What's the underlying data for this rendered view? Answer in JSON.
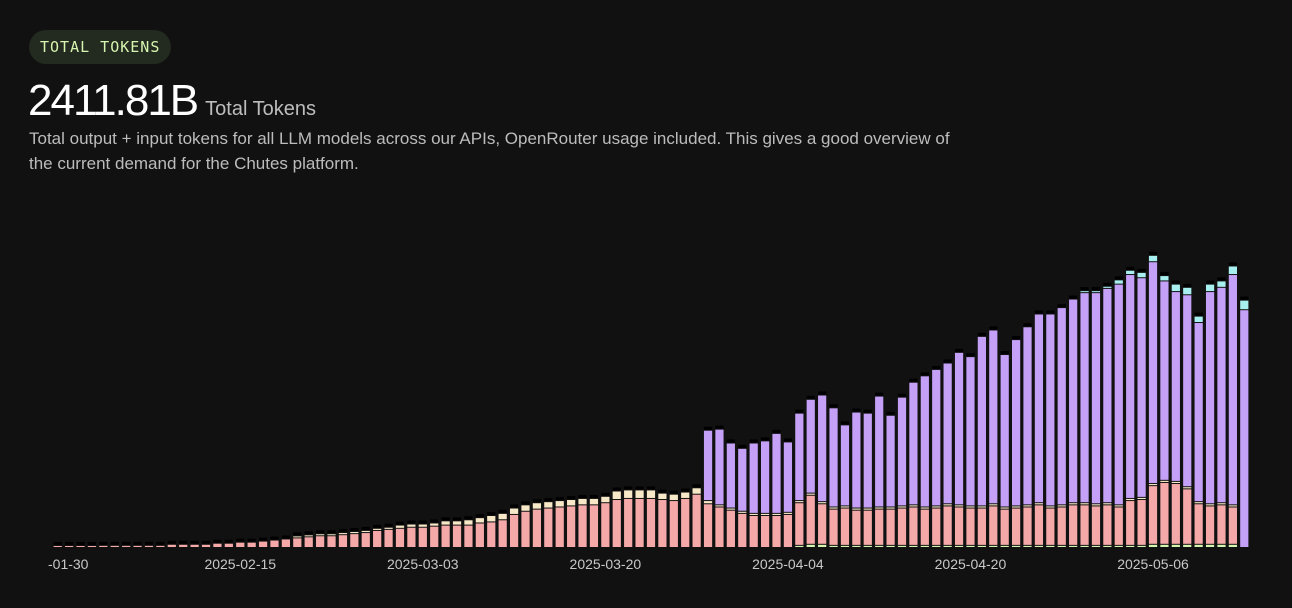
{
  "badge": "TOTAL TOKENS",
  "total_value": "2411.81B",
  "total_unit": "Total Tokens",
  "description": "Total output + input tokens for all LLM models across our APIs, OpenRouter usage included. This gives a good overview of the current demand for the Chutes platform.",
  "colors": {
    "pink": "#f4a9a8",
    "purple": "#c4a0f7",
    "cyan": "#a8eff0",
    "lime": "#d6f5b0",
    "cream": "#f7e8c8"
  },
  "chart_data": {
    "type": "bar",
    "stacked": true,
    "xlabel": "",
    "ylabel": "",
    "x_tick_labels": [
      "-01-30",
      "2025-02-15",
      "2025-03-03",
      "2025-03-20",
      "2025-04-04",
      "2025-04-20",
      "2025-05-06"
    ],
    "x_tick_index": [
      0,
      16,
      32,
      48,
      64,
      80,
      96
    ],
    "categories_count": 105,
    "series": [
      {
        "color": "#d6f5b0",
        "values": [
          0,
          0,
          0,
          0,
          0,
          0,
          0,
          0,
          0,
          0,
          0,
          0,
          0,
          0,
          0,
          0,
          0,
          0,
          0,
          0,
          0,
          0,
          0,
          0,
          0,
          0,
          0,
          0,
          0,
          0,
          0,
          0,
          0,
          0,
          0,
          0,
          0,
          0,
          0,
          0,
          0,
          0,
          0,
          0,
          0,
          0,
          0,
          0,
          0,
          0,
          0,
          0,
          0,
          0,
          0,
          0,
          0,
          0,
          0,
          0,
          0,
          0,
          0,
          0,
          0,
          0.2,
          0.3,
          0.3,
          0.2,
          0.2,
          0.2,
          0.2,
          0.2,
          0.2,
          0.2,
          0.2,
          0.2,
          0.2,
          0.2,
          0.2,
          0.2,
          0.2,
          0.2,
          0.2,
          0.2,
          0.2,
          0.2,
          0.2,
          0.2,
          0.2,
          0.2,
          0.2,
          0.2,
          0.2,
          0.2,
          0.2,
          0.3,
          0.3,
          0.3,
          0.3,
          0.3,
          0.3,
          0.3,
          0.3,
          0
        ]
      },
      {
        "color": "#f4a9a8",
        "values": [
          0.1,
          0.1,
          0.1,
          0.1,
          0.2,
          0.2,
          0.2,
          0.2,
          0.2,
          0.2,
          0.3,
          0.3,
          0.3,
          0.3,
          0.4,
          0.4,
          0.5,
          0.5,
          0.6,
          0.7,
          0.8,
          0.9,
          1.0,
          1.1,
          1.1,
          1.2,
          1.3,
          1.4,
          1.6,
          1.7,
          1.8,
          1.9,
          1.9,
          2.0,
          2.1,
          2.1,
          2.1,
          2.3,
          2.4,
          2.6,
          3.1,
          3.4,
          3.6,
          3.7,
          3.8,
          3.9,
          4.0,
          4.0,
          4.2,
          4.5,
          4.6,
          4.6,
          4.6,
          4.5,
          4.4,
          4.6,
          5.0,
          4.1,
          3.8,
          3.5,
          3.2,
          3.0,
          3.0,
          3.0,
          3.1,
          4.0,
          4.6,
          3.8,
          3.4,
          3.5,
          3.3,
          3.3,
          3.4,
          3.4,
          3.5,
          3.6,
          3.4,
          3.5,
          3.7,
          3.6,
          3.5,
          3.5,
          3.7,
          3.4,
          3.5,
          3.6,
          3.8,
          3.5,
          3.6,
          3.8,
          3.8,
          3.7,
          3.8,
          3.6,
          4.2,
          4.3,
          5.5,
          5.8,
          5.7,
          5.2,
          3.8,
          3.6,
          3.7,
          3.5,
          0
        ]
      },
      {
        "color": "#f7e8c8",
        "values": [
          0,
          0,
          0,
          0,
          0,
          0,
          0,
          0,
          0,
          0,
          0,
          0,
          0,
          0,
          0,
          0,
          0,
          0,
          0,
          0,
          0,
          0.1,
          0.1,
          0.1,
          0.1,
          0.2,
          0.2,
          0.2,
          0.2,
          0.2,
          0.3,
          0.3,
          0.3,
          0.3,
          0.4,
          0.4,
          0.5,
          0.5,
          0.6,
          0.6,
          0.6,
          0.6,
          0.6,
          0.6,
          0.6,
          0.6,
          0.6,
          0.6,
          0.6,
          0.8,
          0.8,
          0.8,
          0.8,
          0.6,
          0.6,
          0.6,
          0.6,
          0.3,
          0.2,
          0.2,
          0.2,
          0.2,
          0.2,
          0.2,
          0.2,
          0.2,
          0.2,
          0.2,
          0.2,
          0.2,
          0.2,
          0.2,
          0.2,
          0.2,
          0.2,
          0.2,
          0.2,
          0.2,
          0.2,
          0.2,
          0.2,
          0.2,
          0.2,
          0.2,
          0.2,
          0.2,
          0.2,
          0.2,
          0.2,
          0.2,
          0.2,
          0.2,
          0.2,
          0.2,
          0.2,
          0.2,
          0.2,
          0.2,
          0.2,
          0.2,
          0.2,
          0.2,
          0.2,
          0.2,
          0
        ]
      },
      {
        "color": "#c4a0f7",
        "values": [
          0,
          0,
          0,
          0,
          0,
          0,
          0,
          0,
          0,
          0,
          0,
          0,
          0,
          0,
          0,
          0,
          0,
          0,
          0,
          0,
          0,
          0,
          0,
          0,
          0,
          0,
          0,
          0,
          0,
          0,
          0,
          0,
          0,
          0,
          0,
          0,
          0,
          0,
          0,
          0,
          0,
          0,
          0,
          0,
          0,
          0,
          0,
          0,
          0,
          0,
          0,
          0,
          0,
          0,
          0,
          0,
          0,
          6.6,
          7.1,
          6.1,
          5.9,
          6.6,
          6.8,
          7.5,
          6.6,
          8.2,
          8.8,
          10.0,
          9.3,
          7.6,
          9.0,
          8.9,
          10.4,
          8.6,
          10.2,
          11.5,
          12.3,
          12.8,
          13.2,
          14.3,
          14.0,
          15.9,
          16.3,
          14.3,
          15.6,
          16.7,
          17.7,
          18.0,
          18.5,
          19.1,
          19.7,
          19.8,
          20.1,
          20.7,
          21.0,
          20.6,
          20.8,
          18.7,
          17.8,
          18.0,
          16.8,
          19.9,
          20.2,
          21.6,
          22.3,
          5.8
        ]
      },
      {
        "color": "#a8eff0",
        "values": [
          0,
          0,
          0,
          0,
          0,
          0,
          0,
          0,
          0,
          0,
          0,
          0,
          0,
          0,
          0,
          0,
          0,
          0,
          0,
          0,
          0,
          0,
          0,
          0,
          0,
          0,
          0,
          0,
          0,
          0,
          0,
          0,
          0,
          0,
          0,
          0,
          0,
          0,
          0,
          0,
          0,
          0,
          0,
          0,
          0,
          0,
          0,
          0,
          0,
          0,
          0,
          0,
          0,
          0,
          0,
          0,
          0,
          0,
          0,
          0,
          0,
          0,
          0,
          0,
          0,
          0,
          0,
          0,
          0,
          0,
          0,
          0,
          0,
          0,
          0,
          0,
          0,
          0,
          0,
          0,
          0,
          0,
          0,
          0,
          0,
          0,
          0,
          0,
          0,
          0,
          0.1,
          0.1,
          0.2,
          0.4,
          0.4,
          0.5,
          0.6,
          0.5,
          0.7,
          0.7,
          0.6,
          0.7,
          0.6,
          0.8,
          0.9,
          1.0,
          0
        ]
      }
    ]
  }
}
